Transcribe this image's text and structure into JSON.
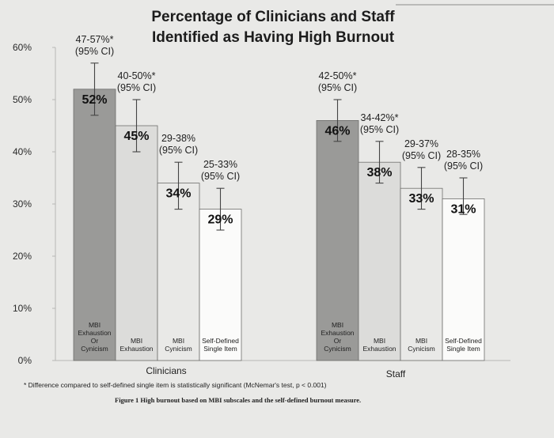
{
  "chart_data": {
    "type": "bar",
    "title": [
      "Percentage of Clinicians and Staff",
      "Identified as Having High Burnout"
    ],
    "ylim": [
      0,
      60
    ],
    "yticks": [
      "0%",
      "10%",
      "20%",
      "30%",
      "40%",
      "50%",
      "60%"
    ],
    "groups": [
      {
        "name": "Clinicians",
        "bars": [
          {
            "category": [
              "MBI",
              "Exhaustion",
              "Or",
              "Cynicism"
            ],
            "value": 52,
            "value_label": "52%",
            "ci": [
              47,
              57
            ],
            "ci_label": "47-57%*",
            "ci_note": "(95% CI)",
            "color": "#9a9a98"
          },
          {
            "category": [
              "MBI",
              "Exhaustion"
            ],
            "value": 45,
            "value_label": "45%",
            "ci": [
              40,
              50
            ],
            "ci_label": "40-50%*",
            "ci_note": "(95% CI)",
            "color": "#dcdcda"
          },
          {
            "category": [
              "MBI",
              "Cynicism"
            ],
            "value": 34,
            "value_label": "34%",
            "ci": [
              29,
              38
            ],
            "ci_label": "29-38%",
            "ci_note": "(95% CI)",
            "color": "#e9e9e7"
          },
          {
            "category": [
              "Self-Defined",
              "Single Item"
            ],
            "value": 29,
            "value_label": "29%",
            "ci": [
              25,
              33
            ],
            "ci_label": "25-33%",
            "ci_note": "(95% CI)",
            "color": "#fbfbfa"
          }
        ]
      },
      {
        "name": "Staff",
        "bars": [
          {
            "category": [
              "MBI",
              "Exhaustion",
              "Or",
              "Cynicism"
            ],
            "value": 46,
            "value_label": "46%",
            "ci": [
              42,
              50
            ],
            "ci_label": "42-50%*",
            "ci_note": "(95% CI)",
            "color": "#9a9a98"
          },
          {
            "category": [
              "MBI",
              "Exhaustion"
            ],
            "value": 38,
            "value_label": "38%",
            "ci": [
              34,
              42
            ],
            "ci_label": "34-42%*",
            "ci_note": "(95% CI)",
            "color": "#dcdcda"
          },
          {
            "category": [
              "MBI",
              "Cynicism"
            ],
            "value": 33,
            "value_label": "33%",
            "ci": [
              29,
              37
            ],
            "ci_label": "29-37%",
            "ci_note": "(95% CI)",
            "color": "#e9e9e7"
          },
          {
            "category": [
              "Self-Defined",
              "Single Item"
            ],
            "value": 31,
            "value_label": "31%",
            "ci": [
              28,
              35
            ],
            "ci_label": "28-35%",
            "ci_note": "(95% CI)",
            "color": "#fbfbfa"
          }
        ]
      }
    ],
    "footnote": "* Difference compared to self-defined single item is statistically significant (McNemar's test, p < 0.001)",
    "caption": "Figure 1 High burnout based on MBI subscales and the self-defined burnout measure."
  }
}
